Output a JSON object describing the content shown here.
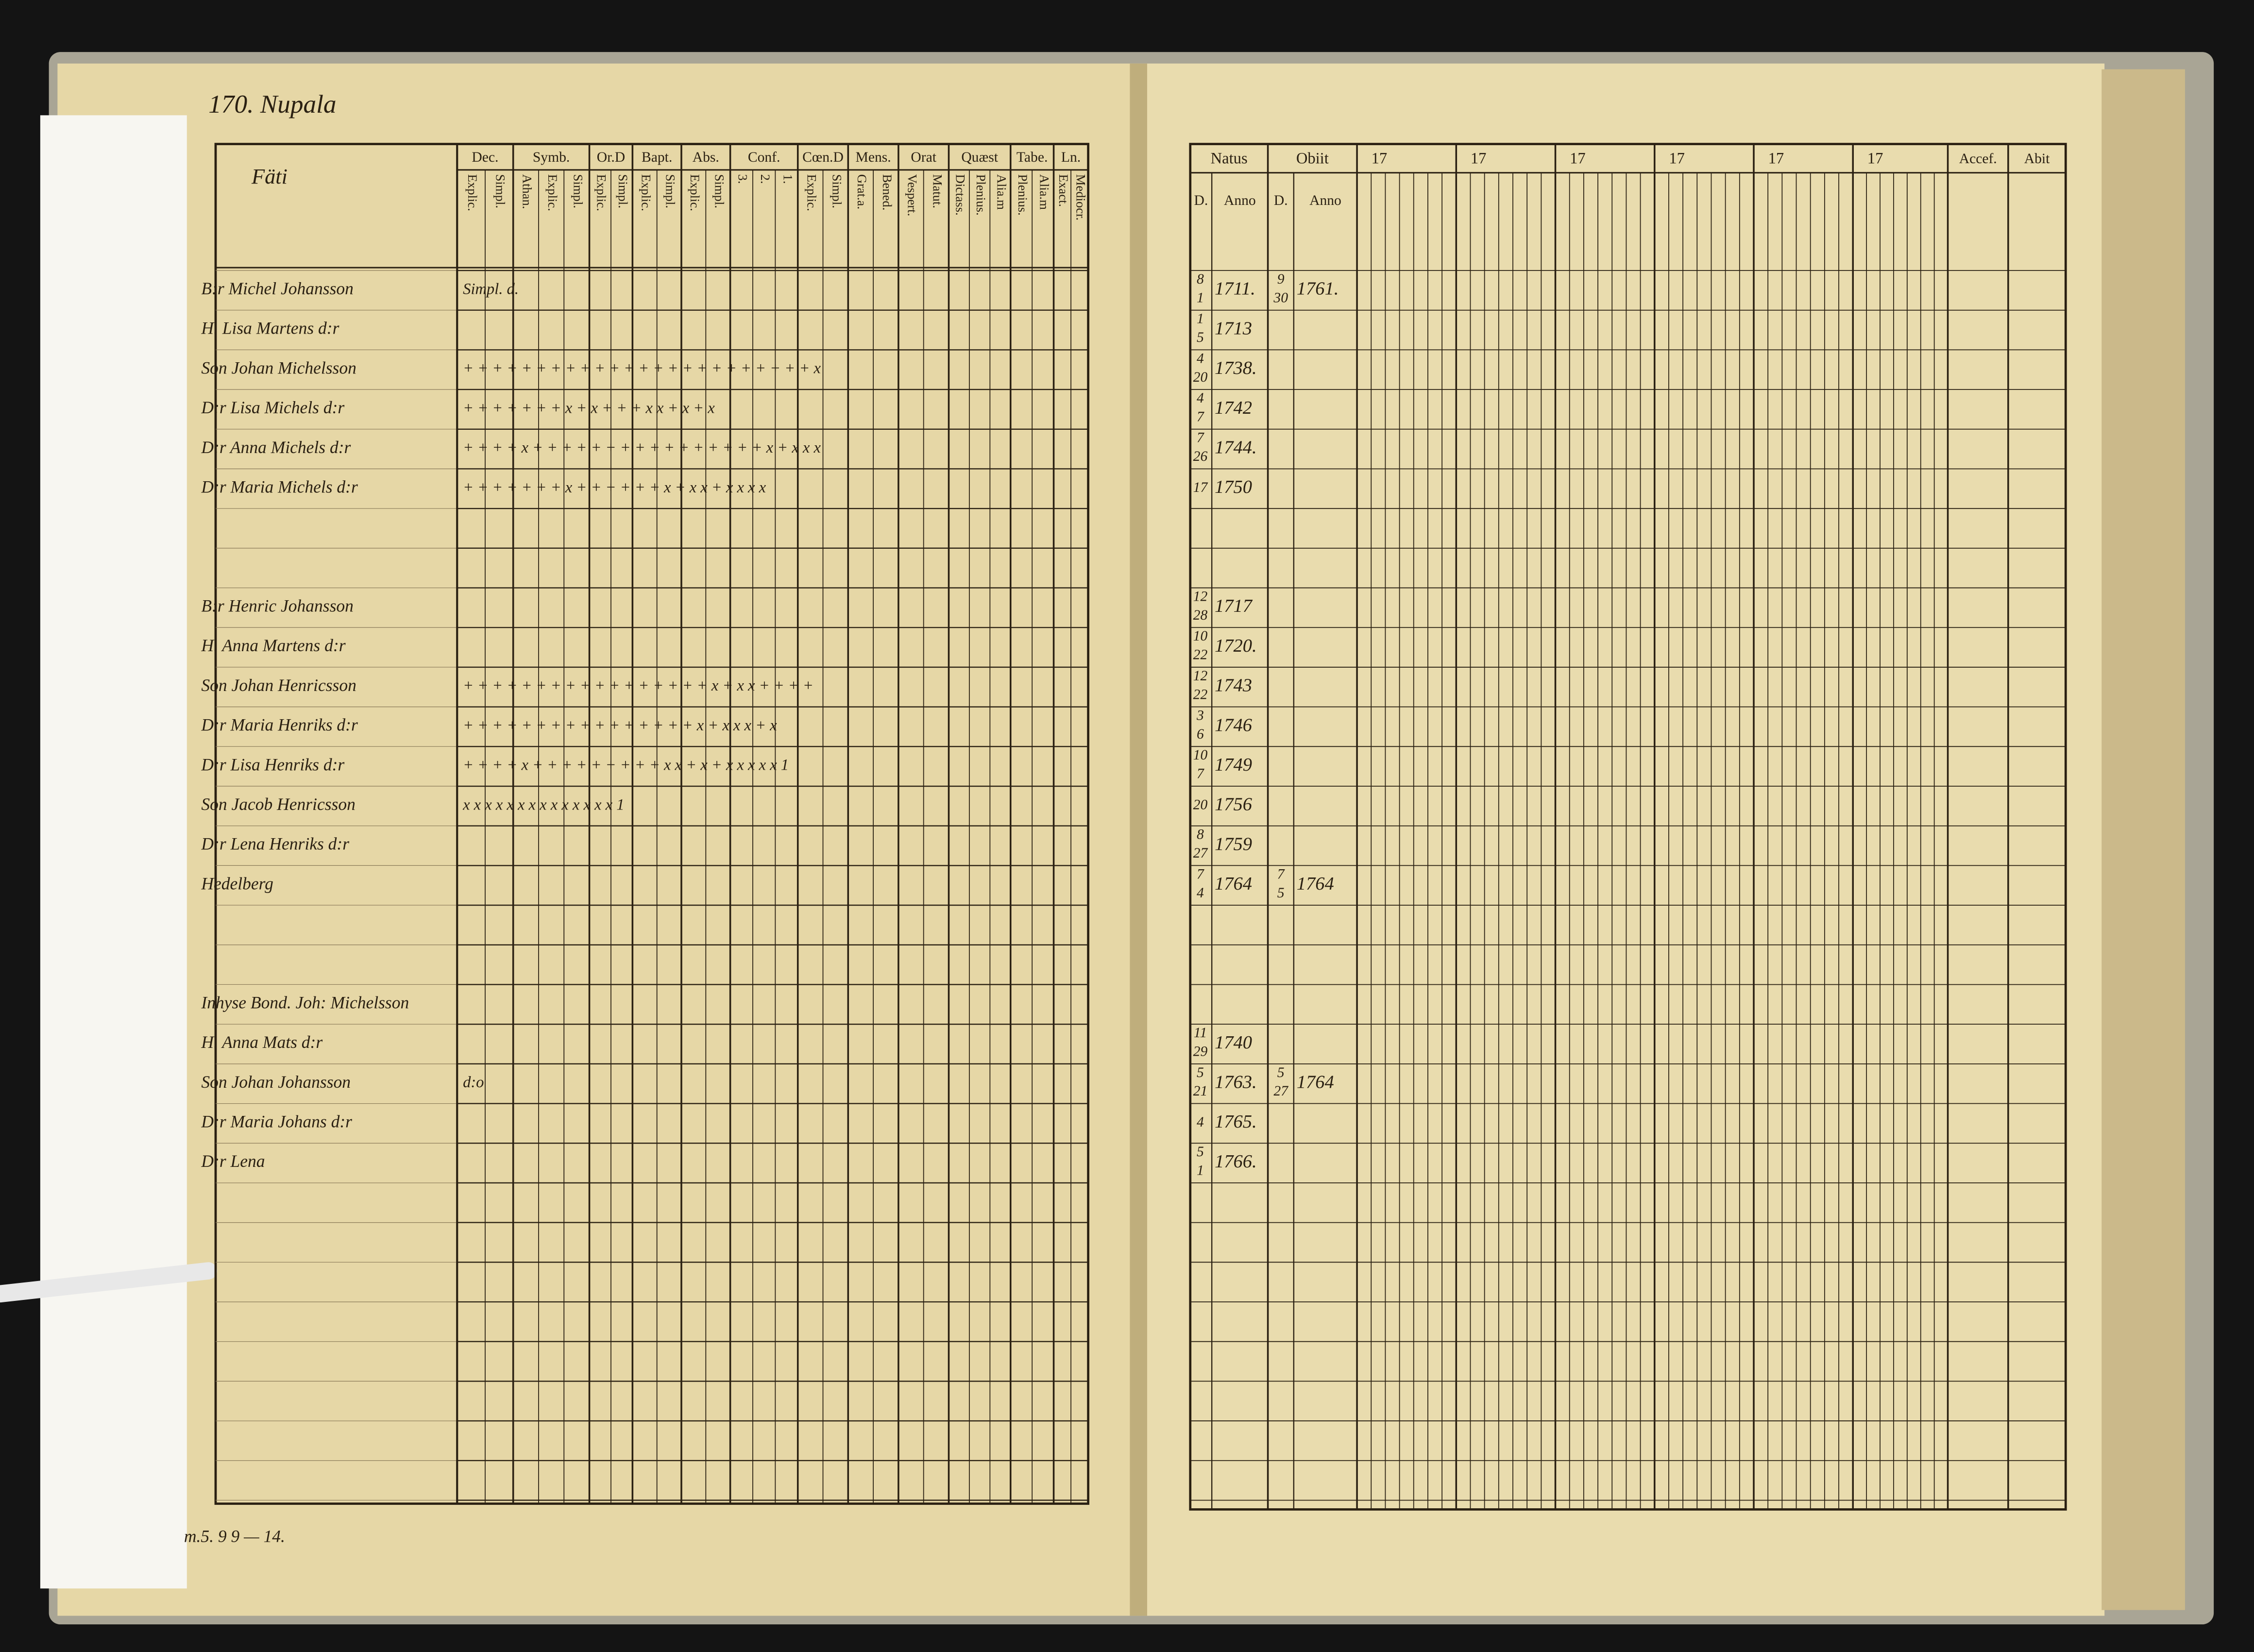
{
  "header": {
    "page_title": "170. Nupala"
  },
  "left_table": {
    "name_header": "Fäti",
    "groups": [
      {
        "label": "Dec.",
        "sub": [
          "Explic.",
          "Simpl."
        ]
      },
      {
        "label": "Symb.",
        "sub": [
          "Athan.",
          "Explic.",
          "Simpl."
        ]
      },
      {
        "label": "Or.D",
        "sub": [
          "Explic.",
          "Simpl."
        ]
      },
      {
        "label": "Bapt.",
        "sub": [
          "Explic.",
          "Simpl."
        ]
      },
      {
        "label": "Abs.",
        "sub": [
          "Explic.",
          "Simpl."
        ]
      },
      {
        "label": "Conf.",
        "sub": [
          "3.",
          "2.",
          "1."
        ]
      },
      {
        "label": "Cœn.D",
        "sub": [
          "Explic.",
          "Simpl."
        ]
      },
      {
        "label": "Mens.",
        "sub": [
          "Grat.a.",
          "Bened."
        ]
      },
      {
        "label": "Orat",
        "sub": [
          "Vespert.",
          "Matut."
        ]
      },
      {
        "label": "Quæst",
        "sub": [
          "Dictass.",
          "Plenius.",
          "Alia.m"
        ]
      },
      {
        "label": "Tabe.",
        "sub": [
          "Plenius.",
          "Alia.m"
        ]
      },
      {
        "label": "Ln.",
        "sub": [
          "Exact.",
          "Mediocr."
        ]
      }
    ],
    "rows": [
      {
        "name": "B:r Michel Johansson",
        "marks": "Simpl.  d."
      },
      {
        "name": "H. Lisa Martens d:r"
      },
      {
        "name": "Son Johan Michelsson",
        "marks": "+ +   + + +   + +   + +   + +   + + +   + +   + +   + +   + +   + + x"
      },
      {
        "name": "D:r Lisa Michels d:r",
        "marks": "+ +   + +   + +   + x   + x   + + +   x x   + x   + x"
      },
      {
        "name": "D:r Anna Michels d:r",
        "marks": "+ +   + + x   + +   + +   + +   + + +   + +   + +   + +   + x   + x x x"
      },
      {
        "name": "D:r Maria Michels d:r",
        "marks": "+ +   + +   + +   + x   + +   + + +   + x   + x x   + x        x x x"
      },
      {
        "name": "B:r Henric Johansson"
      },
      {
        "name": "H. Anna Martens d:r"
      },
      {
        "name": "Son Johan Henricsson",
        "marks": "+ +   + + +   + +   + +   + +   + + +   + +   + x   + x   x +   + + +"
      },
      {
        "name": "D:r Maria Henriks d:r",
        "marks": "+ +   + +   + +   + +   + +   + + +   + +   + x   + x   x        x + x"
      },
      {
        "name": "D:r Lisa Henriks d:r",
        "marks": "+ +   + + x   + +   + +   + +   + + +   x x   + x   + x   x x   x x 1"
      },
      {
        "name": "Son Jacob Henricsson",
        "marks": "x x   x x        x x   x x              x x   x x   x x              1"
      },
      {
        "name": "D:r Lena Henriks d:r"
      },
      {
        "name": "Hedelberg"
      },
      {
        "name": "Inhyse Bond. Joh: Michelsson"
      },
      {
        "name": "H. Anna Mats d:r"
      },
      {
        "name": "Son Johan Johansson",
        "marks": "d:o"
      },
      {
        "name": "D:r Maria Johans d:r"
      },
      {
        "name": "D:r Lena"
      }
    ]
  },
  "right_table": {
    "natus": {
      "label": "Natus",
      "sub": [
        "D.",
        "Anno"
      ]
    },
    "obiit": {
      "label": "Obiit",
      "sub": [
        "D.",
        "Anno"
      ]
    },
    "year_headers": [
      "17",
      "17",
      "17",
      "17",
      "17",
      "17"
    ],
    "accef": "Accef.",
    "abit": "Abit",
    "rows": [
      {
        "natus_d": [
          "8",
          "1"
        ],
        "natus_anno": "1711.",
        "obiit_d": [
          "9",
          "30"
        ],
        "obiit_anno": "1761."
      },
      {
        "natus_d": [
          "1",
          "5"
        ],
        "natus_anno": "1713"
      },
      {
        "natus_d": [
          "4",
          "20"
        ],
        "natus_anno": "1738."
      },
      {
        "natus_d": [
          "4",
          "7"
        ],
        "natus_anno": "1742"
      },
      {
        "natus_d": [
          "7",
          "26"
        ],
        "natus_anno": "1744."
      },
      {
        "natus_d": [
          "17"
        ],
        "natus_anno": "1750"
      },
      {
        "natus_d": [
          "12",
          "28"
        ],
        "natus_anno": "1717"
      },
      {
        "natus_d": [
          "10",
          "22"
        ],
        "natus_anno": "1720."
      },
      {
        "natus_d": [
          "12",
          "22"
        ],
        "natus_anno": "1743"
      },
      {
        "natus_d": [
          "3",
          "6"
        ],
        "natus_anno": "1746"
      },
      {
        "natus_d": [
          "10",
          "7"
        ],
        "natus_anno": "1749"
      },
      {
        "natus_d": [
          "20"
        ],
        "natus_anno": "1756"
      },
      {
        "natus_d": [
          "8",
          "27"
        ],
        "natus_anno": "1759"
      },
      {
        "natus_d": [
          "7",
          "4"
        ],
        "natus_anno": "1764",
        "obiit_d": [
          "7",
          "5"
        ],
        "obiit_anno": "1764"
      },
      {
        "natus_d": [
          "11",
          "29"
        ],
        "natus_anno": "1740"
      },
      {
        "natus_d": [
          "5",
          "21"
        ],
        "natus_anno": "1763.",
        "obiit_d": [
          "5",
          "27"
        ],
        "obiit_anno": "1764"
      },
      {
        "natus_d": [
          "4"
        ],
        "natus_anno": "1765."
      },
      {
        "natus_d": [
          "5",
          "1"
        ],
        "natus_anno": "1766."
      }
    ]
  },
  "footer": {
    "note": "m.5. 9 9 — 14."
  }
}
